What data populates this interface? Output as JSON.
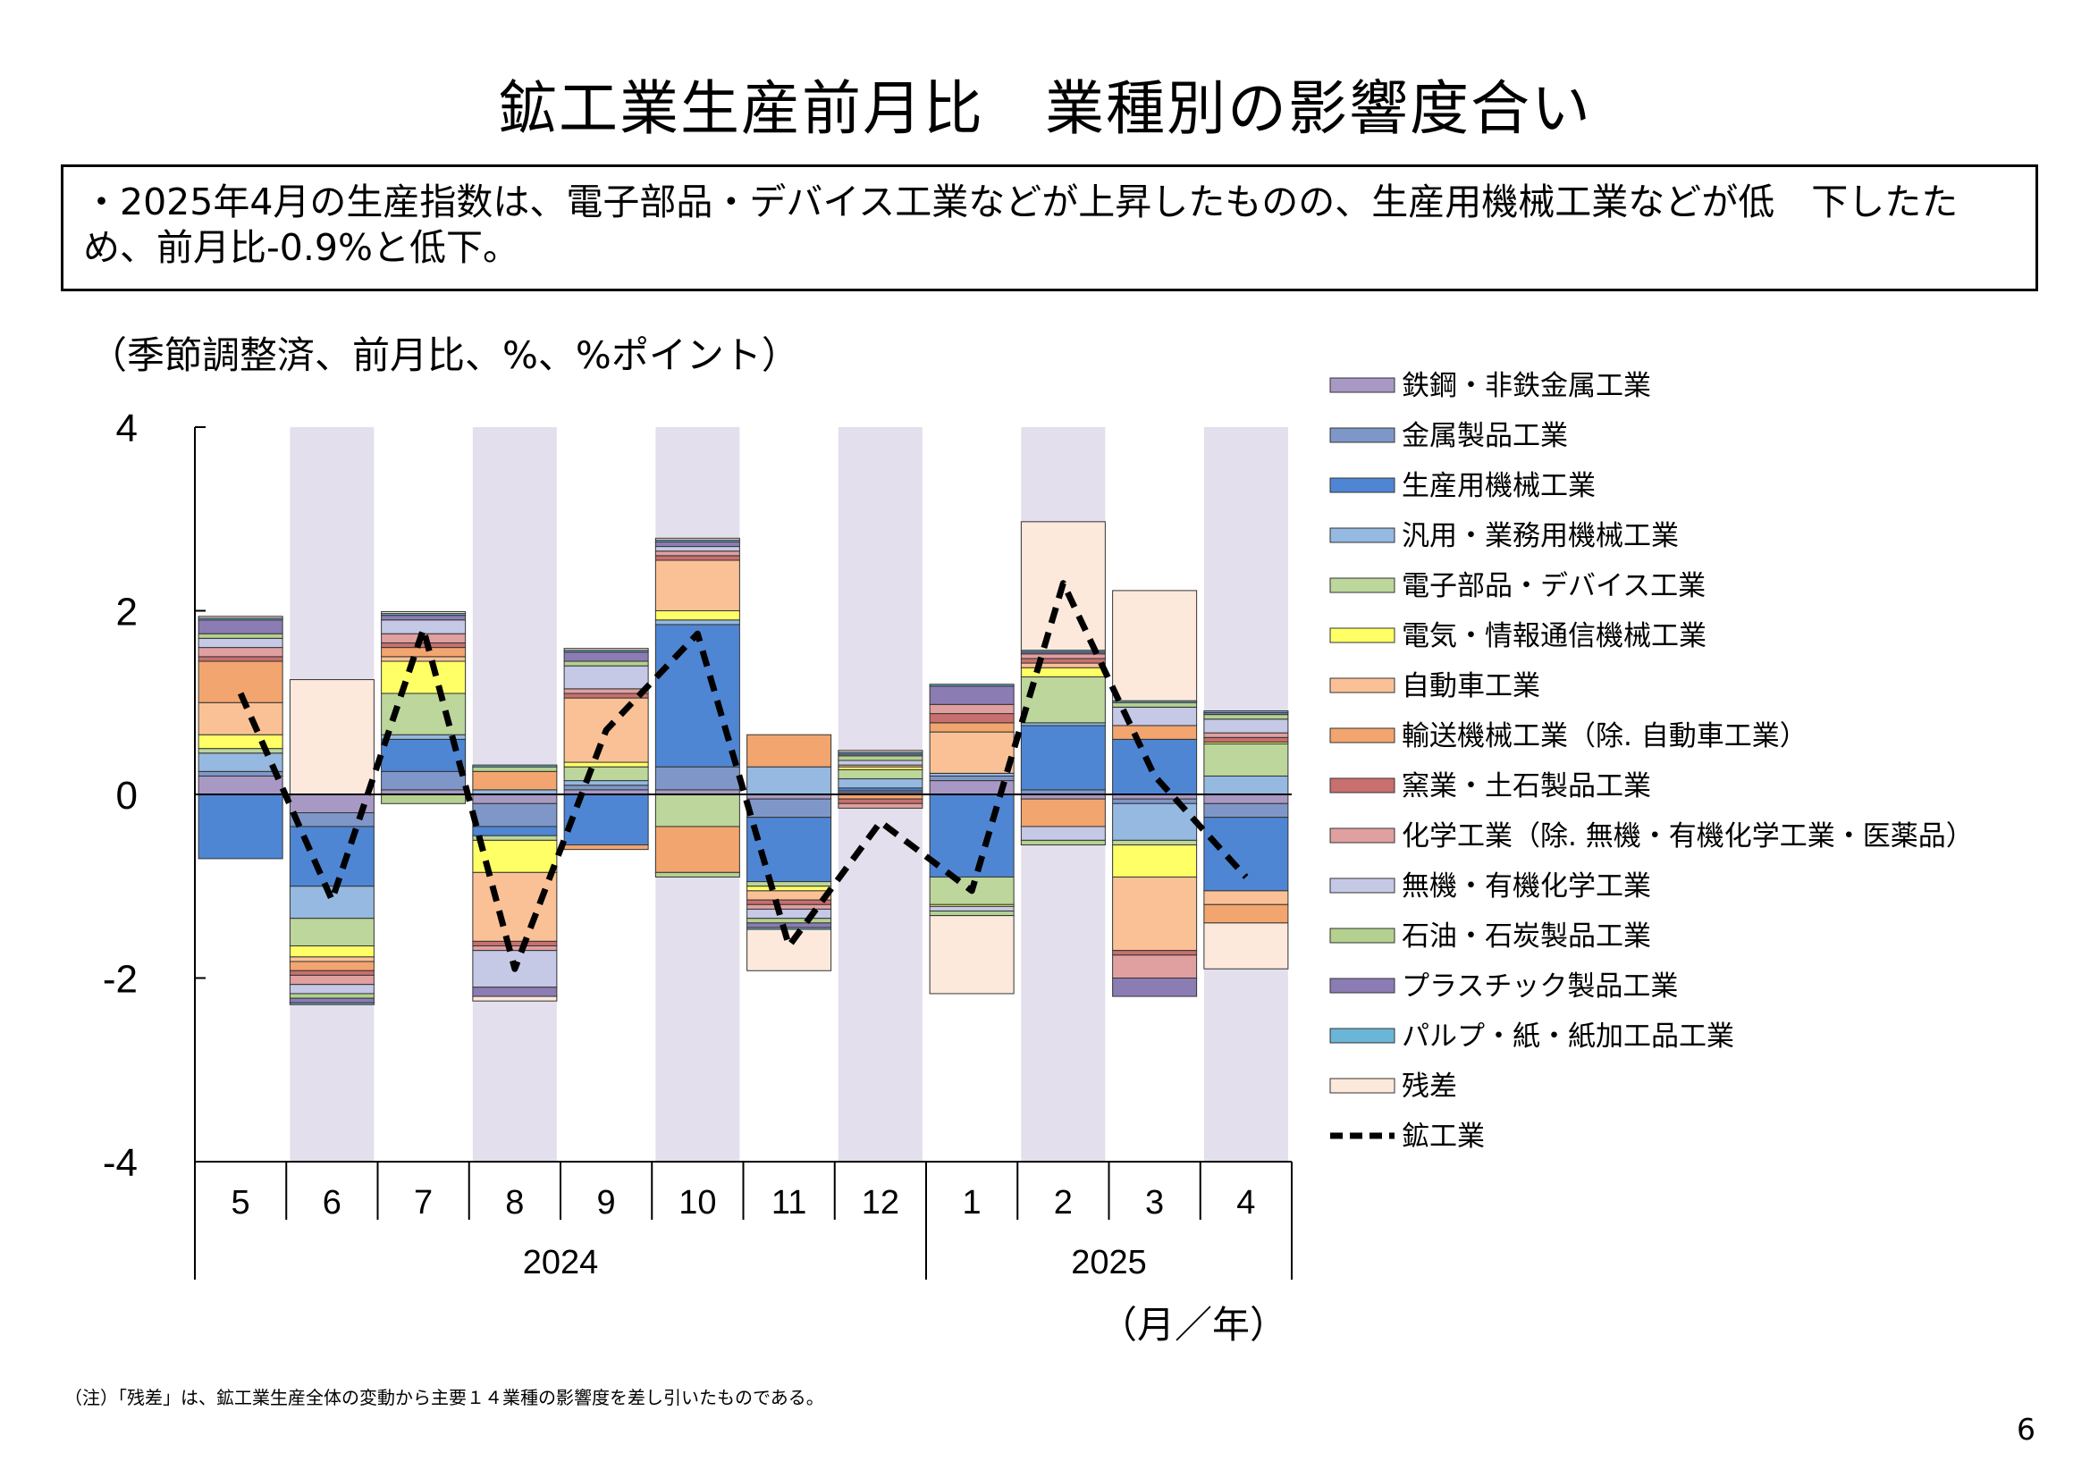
{
  "title": "鉱工業生産前月比　業種別の影響度合い",
  "summary": "・2025年4月の生産指数は、電子部品・デバイス工業などが上昇したものの、生産用機械工業などが低　下したため、前月比-0.9%と低下。",
  "note": "（注）「残差」は、鉱工業生産全体の変動から主要１４業種の影響度を差し引いたものである。",
  "page_number": "6",
  "colors": {
    "shade": "#e3dfec",
    "axis": "#000000",
    "line": "#000000"
  },
  "chart_data": {
    "type": "bar",
    "stacked": true,
    "unit_label": "（季節調整済、前月比、%、%ポイント）",
    "x_unit_label": "（月／年）",
    "ylim": [
      -4,
      4
    ],
    "yticks": [
      "4",
      "2",
      "0",
      "-2",
      "-4"
    ],
    "categories": [
      "5",
      "6",
      "7",
      "8",
      "9",
      "10",
      "11",
      "12",
      "1",
      "2",
      "3",
      "4"
    ],
    "year_groups": [
      {
        "label": "2024",
        "count": 8
      },
      {
        "label": "2025",
        "count": 4
      }
    ],
    "shaded_categories": [
      "6",
      "8",
      "10",
      "12",
      "2",
      "4"
    ],
    "legend_position": "right",
    "series": [
      {
        "name": "鉄鋼・非鉄金属工業",
        "color": "#a899c4",
        "values": [
          0.2,
          -0.2,
          0.05,
          -0.1,
          0.05,
          0.05,
          -0.05,
          0.02,
          0.15,
          -0.05,
          -0.05,
          -0.1
        ]
      },
      {
        "name": "金属製品工業",
        "color": "#7f97c8",
        "values": [
          0.05,
          -0.15,
          0.2,
          -0.25,
          0.05,
          0.25,
          -0.2,
          0.02,
          0.05,
          0.05,
          -0.05,
          -0.15
        ]
      },
      {
        "name": "生産用機械工業",
        "color": "#4f86d4",
        "values": [
          -0.7,
          -0.65,
          0.35,
          -0.1,
          -0.55,
          1.55,
          -0.7,
          0.03,
          -0.9,
          0.7,
          0.6,
          -0.8
        ]
      },
      {
        "name": "汎用・業務用機械工業",
        "color": "#95b9e0",
        "values": [
          0.2,
          -0.35,
          0.05,
          0.05,
          0.05,
          0.05,
          0.3,
          0.1,
          0.03,
          0.03,
          -0.4,
          0.2
        ]
      },
      {
        "name": "電子部品・デバイス工業",
        "color": "#bcd69b",
        "values": [
          0.05,
          -0.3,
          0.45,
          -0.05,
          0.15,
          -0.35,
          -0.05,
          0.1,
          -0.3,
          0.5,
          -0.05,
          0.35
        ]
      },
      {
        "name": "電気・情報通信機械工業",
        "color": "#ffff66",
        "values": [
          0.15,
          -0.12,
          0.35,
          -0.35,
          0.05,
          0.1,
          -0.05,
          0.03,
          -0.02,
          0.1,
          -0.35,
          0.02
        ]
      },
      {
        "name": "自動車工業",
        "color": "#fbc196",
        "values": [
          0.35,
          -0.05,
          0.05,
          -0.75,
          0.7,
          0.55,
          -0.1,
          0.02,
          0.45,
          0.05,
          -0.8,
          -0.15
        ]
      },
      {
        "name": "輸送機械工業（除. 自動車工業）",
        "color": "#f2a56e",
        "values": [
          0.45,
          -0.1,
          0.1,
          0.2,
          -0.05,
          -0.5,
          0.35,
          -0.05,
          0.1,
          -0.3,
          0.15,
          -0.2
        ]
      },
      {
        "name": "窯業・土石製品工業",
        "color": "#c86f6f",
        "values": [
          0.05,
          -0.05,
          0.05,
          -0.05,
          0.05,
          0.05,
          -0.05,
          -0.05,
          0.1,
          0.05,
          -0.05,
          0.05
        ]
      },
      {
        "name": "化学工業（除. 無機・有機化学工業・医薬品）",
        "color": "#e0a0a0",
        "values": [
          0.1,
          -0.1,
          0.1,
          -0.05,
          0.05,
          0.05,
          -0.05,
          -0.05,
          0.1,
          0.05,
          -0.25,
          0.05
        ]
      },
      {
        "name": "無機・有機化学工業",
        "color": "#c5c9e6",
        "values": [
          0.1,
          -0.1,
          0.15,
          -0.4,
          0.25,
          0.05,
          -0.1,
          0.05,
          -0.05,
          -0.15,
          0.2,
          0.15
        ]
      },
      {
        "name": "石油・石炭製品工業",
        "color": "#b4d190",
        "values": [
          0.05,
          -0.05,
          -0.1,
          0.05,
          0.05,
          -0.05,
          -0.05,
          0.05,
          -0.05,
          -0.05,
          0.05,
          0.05
        ]
      },
      {
        "name": "プラスチック製品工業",
        "color": "#8c7cb4",
        "values": [
          0.15,
          -0.05,
          0.05,
          -0.1,
          0.1,
          0.05,
          -0.05,
          0.02,
          0.2,
          0.02,
          -0.2,
          0.02
        ]
      },
      {
        "name": "パルプ・紙・紙加工品工業",
        "color": "#6bb6d6",
        "values": [
          0.02,
          -0.02,
          0.02,
          0.02,
          0.02,
          0.02,
          -0.02,
          0.02,
          0.02,
          0.02,
          0.02,
          0.02
        ]
      },
      {
        "name": "残差",
        "color": "#fde9dc",
        "values": [
          0.02,
          1.25,
          0.02,
          -0.05,
          0.02,
          0.02,
          -0.45,
          0.02,
          -0.85,
          1.4,
          1.2,
          -0.5
        ]
      }
    ],
    "line_series": {
      "name": "鉱工業",
      "values": [
        1.1,
        -1.15,
        1.8,
        -1.9,
        0.7,
        1.75,
        -1.65,
        -0.3,
        -1.05,
        2.3,
        0.2,
        -0.9
      ]
    }
  }
}
